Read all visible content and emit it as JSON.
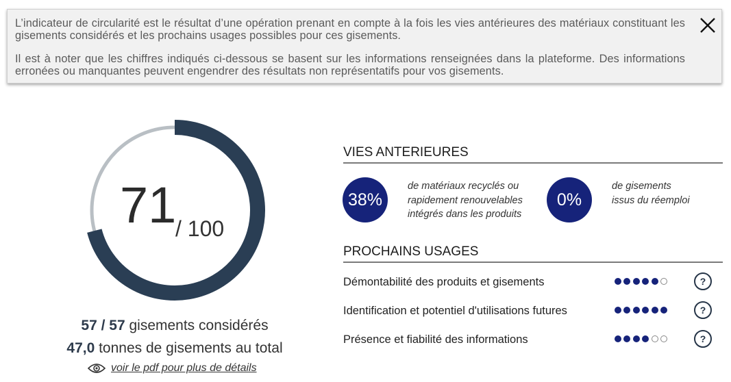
{
  "banner": {
    "paragraph1": "L’indicateur de circularité est le résultat d’une opération prenant en compte à la fois les vies antérieures des matériaux constituant les gisements considérés et les prochains usages possibles pour ces gisements.",
    "paragraph2": "Il est à noter que les chiffres indiqués ci-dessous se basent sur les informations renseignées dans la plateforme. Des informations erronées ou manquantes peuvent engendrer des résultats non représentatifs pour vos gisements.",
    "close_icon": "close-icon"
  },
  "score": {
    "value": "71",
    "max_label": "/ 100",
    "fraction": 0.71,
    "fill_color": "#2a3e54",
    "track_color": "#b9bfc4"
  },
  "stats": {
    "count_bold": "57 / 57",
    "count_text": " gisements considérés",
    "tonnage_bold": "47,0",
    "tonnage_text": " tonnes de gisements au total",
    "pdf_link": "voir le pdf pour plus de détails",
    "pdf_icon": "eye-icon"
  },
  "vies_anterieures": {
    "title": "VIES ANTERIEURES",
    "items": [
      {
        "value": "38%",
        "description": "de matériaux recyclés ou rapidement renouvelables intégrés dans les produits"
      },
      {
        "value": "0%",
        "description": "de gisements issus du réemploi"
      }
    ],
    "circle_color": "#16237a"
  },
  "prochains_usages": {
    "title": "PROCHAINS USAGES",
    "help_label": "?",
    "rows": [
      {
        "label": "Démontabilité des produits et gisements",
        "rating": 5,
        "max": 6
      },
      {
        "label": "Identification et potentiel d'utilisations futures",
        "rating": 6,
        "max": 6
      },
      {
        "label": "Présence et fiabilité des informations",
        "rating": 4,
        "max": 6
      }
    ]
  }
}
